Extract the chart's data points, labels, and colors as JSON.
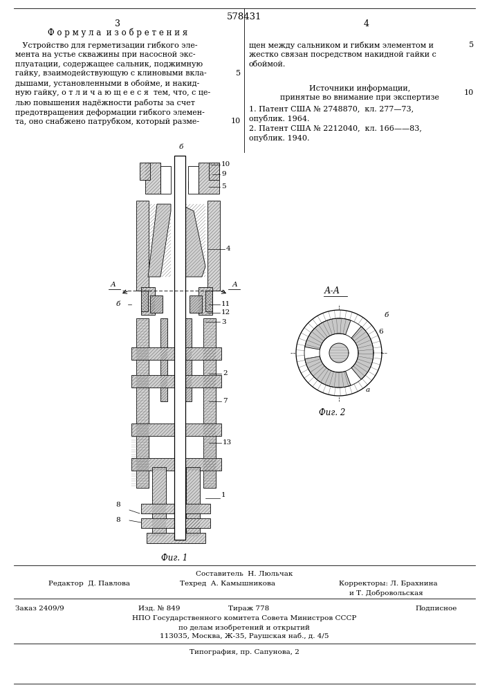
{
  "patent_number": "578431",
  "page_left": "3",
  "page_right": "4",
  "section_title": "Ф о р м у л а  и з о б р е т е н и я",
  "left_lines": [
    "   Устройство для герметизации гибкого эле-",
    "мента на устье скважины при насосной экс-",
    "плуатации, содержащее сальник, поджимную",
    "гайку, взаимодействующую с клиновыми вкла-",
    "дышами, установленными в обойме, и накид-",
    "ную гайку, о т л и ч а ю щ е е с я  тем, что, с це-",
    "лью повышения надёжности работы за счет",
    "предотвращения деформации гибкого элемен-",
    "та, оно снабжено патрубком, который разме-"
  ],
  "right_continuation": [
    "щен между сальником и гибким элементом и",
    "жестко связан посредством накидной гайки с",
    "обоймой."
  ],
  "right_sources_title": "Источники информации,",
  "right_sources_title2": "принятые во внимание при экспертизе",
  "right_sources": [
    "1. Патент США № 2748870,  кл. 277—73,",
    "опублик. 1964.",
    "2. Патент США № 2212040,  кл. 166——83,",
    "опублик. 1940."
  ],
  "fig1_label": "Фиг. 1",
  "fig2_label": "Фиг. 2",
  "fig2_section_label": "А-А",
  "footer_composer_line": "Составитель  Н. Люльчак",
  "footer_editor": "Редактор  Д. Павлова",
  "footer_tech": "Техред  А. Камышникова",
  "footer_correctors1": "Корректоры: Л. Брахнина",
  "footer_correctors2": "и Т. Добровольская",
  "footer_order": "Заказ 2409/9",
  "footer_edition": "Изд. № 849",
  "footer_circulation": "Тираж 778",
  "footer_subscription": "Подписное",
  "footer_npo1": "НПО Государственного комитета Совета Министров СССР",
  "footer_npo2": "по делам изобретений и открытий",
  "footer_npo3": "113035, Москва, Ж-35, Раушская наб., д. 4/5",
  "footer_typography": "Типография, пр. Сапунова, 2",
  "bg_color": "#ffffff",
  "text_color": "#000000"
}
